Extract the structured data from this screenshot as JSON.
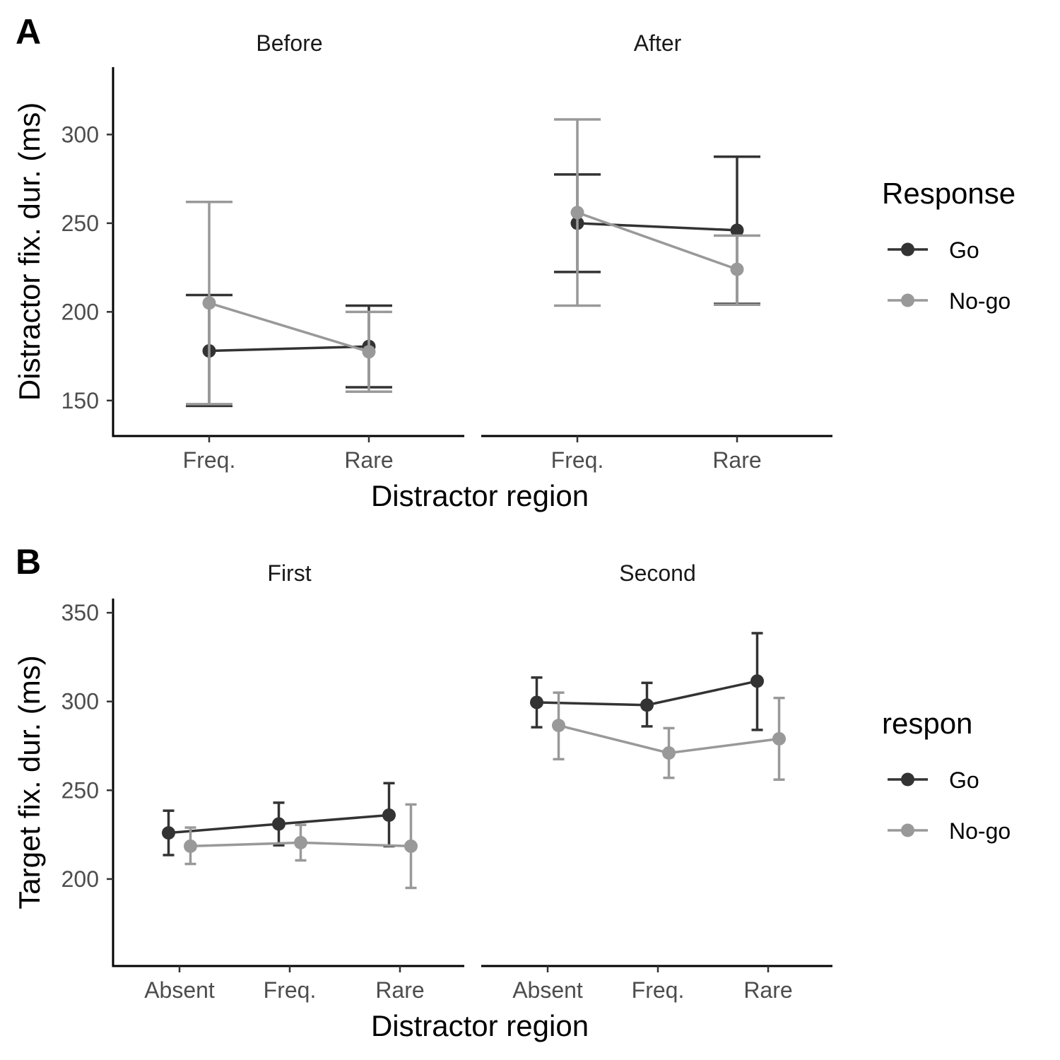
{
  "colors": {
    "go": "#333333",
    "nogo": "#999999"
  },
  "chart_data": [
    {
      "type": "line",
      "panel_label": "A",
      "facets": [
        "Before",
        "After"
      ],
      "categories": [
        "Freq.",
        "Rare"
      ],
      "xlabel": "Distractor region",
      "ylabel": "Distractor fix. dur. (ms)",
      "ylim": [
        130,
        338
      ],
      "yticks": [
        150,
        200,
        250,
        300
      ],
      "legend_title": "Response",
      "error_bars": true,
      "series": [
        {
          "name": "Go",
          "color": "#333333",
          "facet_values": [
            {
              "values": [
                178,
                180.5
              ],
              "lower": [
                147,
                157.5
              ],
              "upper": [
                209.5,
                203.5
              ]
            },
            {
              "values": [
                250,
                246
              ],
              "lower": [
                222.5,
                204.5
              ],
              "upper": [
                277.5,
                287.5
              ]
            }
          ]
        },
        {
          "name": "No-go",
          "color": "#999999",
          "facet_values": [
            {
              "values": [
                205,
                177.5
              ],
              "lower": [
                148,
                155
              ],
              "upper": [
                262,
                200
              ]
            },
            {
              "values": [
                256,
                224
              ],
              "lower": [
                203.5,
                204
              ],
              "upper": [
                308.5,
                243
              ]
            }
          ]
        }
      ]
    },
    {
      "type": "line",
      "panel_label": "B",
      "facets": [
        "First",
        "Second"
      ],
      "categories": [
        "Absent",
        "Freq.",
        "Rare"
      ],
      "xlabel": "Distractor region",
      "ylabel": "Target fix. dur. (ms)",
      "ylim": [
        151,
        358
      ],
      "yticks": [
        200,
        250,
        300,
        350
      ],
      "legend_title": "respon",
      "error_bars": true,
      "series": [
        {
          "name": "Go",
          "color": "#333333",
          "facet_values": [
            {
              "values": [
                226,
                231,
                236
              ],
              "lower": [
                213.5,
                219,
                218.5
              ],
              "upper": [
                238.5,
                243,
                254
              ]
            },
            {
              "values": [
                299.5,
                298,
                311.5
              ],
              "lower": [
                285.5,
                286,
                284
              ],
              "upper": [
                313.5,
                310.5,
                338.5
              ]
            }
          ]
        },
        {
          "name": "No-go",
          "color": "#999999",
          "facet_values": [
            {
              "values": [
                218.5,
                220.5,
                218.5
              ],
              "lower": [
                208.5,
                210.5,
                195
              ],
              "upper": [
                229,
                230.5,
                242
              ]
            },
            {
              "values": [
                286.5,
                271,
                279
              ],
              "lower": [
                267.5,
                257,
                256
              ],
              "upper": [
                305,
                285,
                302
              ]
            }
          ]
        }
      ]
    }
  ]
}
